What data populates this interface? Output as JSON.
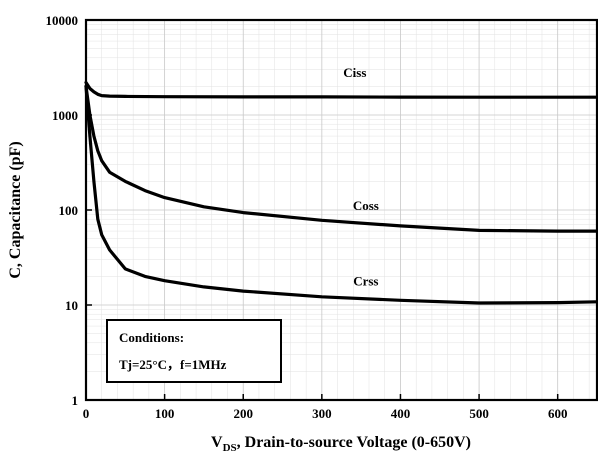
{
  "chart_data": {
    "type": "line",
    "y_scale": "log",
    "xlabel_main": "V",
    "xlabel_sub": "DS",
    "xlabel_rest": ", Drain-to-source Voltage (0-650V)",
    "ylabel": "C, Capacitance (pF)",
    "xlim": [
      0,
      650
    ],
    "ylim": [
      1,
      10000
    ],
    "grid": true,
    "x_ticks": [
      0,
      100,
      200,
      300,
      400,
      500,
      600
    ],
    "y_ticks": [
      1,
      10,
      100,
      1000,
      10000
    ],
    "x_tick_labels": [
      "0",
      "100",
      "200",
      "300",
      "400",
      "500",
      "600"
    ],
    "y_tick_labels": [
      "1",
      "10",
      "100",
      "1000",
      "10000"
    ],
    "series": [
      {
        "name": "Ciss",
        "x": [
          0,
          5,
          10,
          15,
          20,
          30,
          50,
          100,
          200,
          300,
          400,
          500,
          600,
          650
        ],
        "y": [
          2200,
          1900,
          1750,
          1650,
          1600,
          1580,
          1570,
          1560,
          1550,
          1550,
          1545,
          1540,
          1540,
          1540
        ]
      },
      {
        "name": "Coss",
        "x": [
          0,
          5,
          10,
          15,
          20,
          30,
          50,
          75,
          100,
          150,
          200,
          300,
          400,
          500,
          600,
          650
        ],
        "y": [
          2000,
          1000,
          600,
          420,
          330,
          250,
          200,
          160,
          135,
          108,
          94,
          78,
          68,
          61,
          60,
          60
        ]
      },
      {
        "name": "Crss",
        "x": [
          0,
          5,
          10,
          15,
          20,
          30,
          50,
          75,
          100,
          150,
          200,
          300,
          400,
          500,
          600,
          650
        ],
        "y": [
          2000,
          600,
          200,
          80,
          55,
          38,
          24,
          20,
          18,
          15.5,
          14,
          12.2,
          11.2,
          10.5,
          10.6,
          10.8
        ]
      }
    ],
    "annotations": {
      "conditions_title": "Conditions:",
      "conditions_detail": "Tj=25°C，f=1MHz"
    }
  }
}
